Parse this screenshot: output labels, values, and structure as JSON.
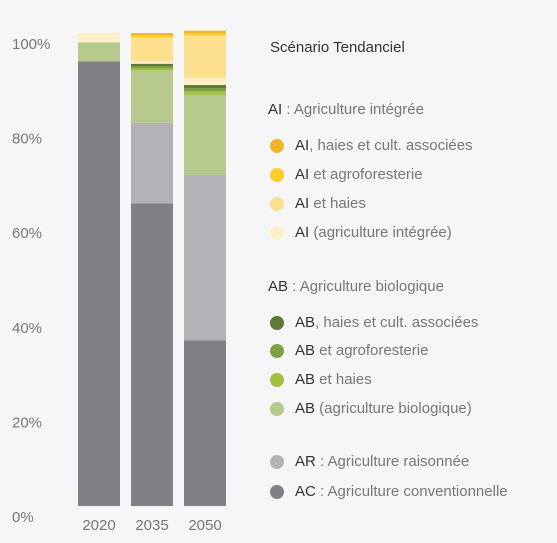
{
  "chart_data": {
    "type": "stacked_bar",
    "legend_title": "Scénario Tendanciel",
    "legend_groups": [
      "AI : Agriculture intégrée",
      "AB : Agriculture biologique"
    ],
    "categories": [
      "2020",
      "2035",
      "2050"
    ],
    "ylim": [
      0,
      100
    ],
    "yticks": [
      {
        "value": 0,
        "label": "0%"
      },
      {
        "value": 20,
        "label": "20%"
      },
      {
        "value": 40,
        "label": "40%"
      },
      {
        "value": 60,
        "label": "60%"
      },
      {
        "value": 80,
        "label": "80%"
      },
      {
        "value": 100,
        "label": "100%"
      }
    ],
    "series": [
      {
        "name": "AI, haies et cult. associées",
        "color": "#f0b52c",
        "values": [
          0,
          0.5,
          0.5
        ]
      },
      {
        "name": "AI et agroforesterie",
        "color": "#fccd2a",
        "values": [
          0,
          0.5,
          0.5
        ]
      },
      {
        "name": "AI et haies",
        "color": "#fde08e",
        "values": [
          0,
          5,
          9
        ]
      },
      {
        "name": "AI (agriculture intégrée)",
        "color": "#fef0c6",
        "values": [
          2,
          0.5,
          1.5
        ]
      },
      {
        "name": "AB, haies et cult. associées",
        "color": "#5b7a36",
        "values": [
          0,
          0.5,
          0.7
        ]
      },
      {
        "name": "AB et agroforesterie",
        "color": "#7e9f42",
        "values": [
          0,
          0.5,
          0.6
        ]
      },
      {
        "name": "AB et haies",
        "color": "#a3c141",
        "values": [
          0,
          0.5,
          0.7
        ]
      },
      {
        "name": "AB (agriculture biologique)",
        "color": "#b5ca8c",
        "values": [
          4,
          11,
          17
        ]
      },
      {
        "name": "AR : Agriculture raisonnée",
        "color": "#b2b2b7",
        "values": [
          0,
          17,
          35
        ]
      },
      {
        "name": "AC : Agriculture conventionnelle",
        "color": "#808086",
        "values": [
          94,
          64,
          35
        ]
      }
    ]
  }
}
